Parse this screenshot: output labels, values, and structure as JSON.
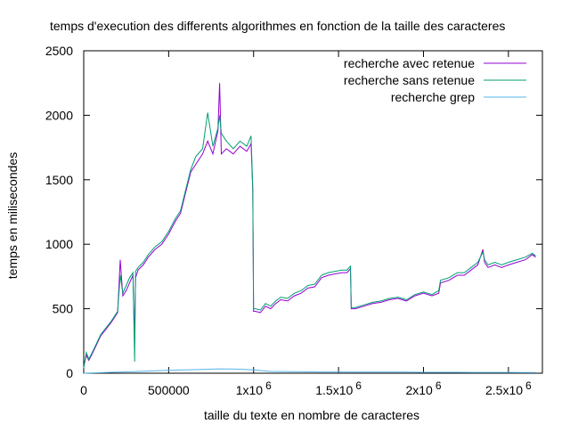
{
  "chart_data": {
    "type": "line",
    "title": "temps d'execution des differents algorithmes en fonction de la taille des caracteres",
    "xlabel": "taille du texte en nombre de caracteres",
    "ylabel": "temps en milisecondes",
    "xlim": [
      0,
      2700000
    ],
    "ylim": [
      0,
      2500
    ],
    "x_ticks": [
      {
        "value": 0,
        "label": "0",
        "exp": ""
      },
      {
        "value": 500000,
        "label": "500000",
        "exp": ""
      },
      {
        "value": 1000000,
        "label": "1x10",
        "exp": "6"
      },
      {
        "value": 1500000,
        "label": "1.5x10",
        "exp": "6"
      },
      {
        "value": 2000000,
        "label": "2x10",
        "exp": "6"
      },
      {
        "value": 2500000,
        "label": "2.5x10",
        "exp": "6"
      }
    ],
    "y_ticks": [
      {
        "value": 0,
        "label": "0"
      },
      {
        "value": 500,
        "label": "500"
      },
      {
        "value": 1000,
        "label": "1000"
      },
      {
        "value": 1500,
        "label": "1500"
      },
      {
        "value": 2000,
        "label": "2000"
      },
      {
        "value": 2500,
        "label": "2500"
      }
    ],
    "legend_position": "top-right",
    "series": [
      {
        "name": "recherche avec retenue",
        "color": "#9400d3",
        "x": [
          0,
          15000,
          30000,
          50000,
          75000,
          100000,
          130000,
          160000,
          200000,
          215000,
          230000,
          250000,
          270000,
          290000,
          300000,
          305000,
          320000,
          350000,
          380000,
          420000,
          460000,
          500000,
          540000,
          570000,
          600000,
          630000,
          660000,
          700000,
          730000,
          760000,
          790000,
          800000,
          810000,
          840000,
          880000,
          920000,
          960000,
          985000,
          995000,
          1000000,
          1010000,
          1040000,
          1070000,
          1100000,
          1130000,
          1160000,
          1200000,
          1240000,
          1280000,
          1320000,
          1360000,
          1400000,
          1440000,
          1480000,
          1520000,
          1550000,
          1570000,
          1575000,
          1600000,
          1650000,
          1700000,
          1750000,
          1800000,
          1850000,
          1900000,
          1950000,
          2000000,
          2050000,
          2090000,
          2100000,
          2150000,
          2200000,
          2240000,
          2280000,
          2320000,
          2350000,
          2360000,
          2380000,
          2420000,
          2460000,
          2500000,
          2550000,
          2600000,
          2640000,
          2660000
        ],
        "y": [
          50,
          140,
          100,
          150,
          220,
          290,
          340,
          390,
          470,
          880,
          600,
          640,
          700,
          760,
          240,
          740,
          800,
          840,
          900,
          960,
          1000,
          1080,
          1180,
          1240,
          1400,
          1560,
          1620,
          1700,
          1800,
          1700,
          1880,
          2250,
          1700,
          1740,
          1700,
          1760,
          1720,
          1780,
          1420,
          480,
          480,
          470,
          520,
          500,
          540,
          570,
          560,
          600,
          620,
          660,
          670,
          740,
          760,
          770,
          780,
          780,
          810,
          500,
          500,
          520,
          540,
          550,
          570,
          580,
          560,
          600,
          620,
          600,
          620,
          700,
          720,
          760,
          760,
          800,
          840,
          960,
          860,
          820,
          840,
          820,
          840,
          860,
          880,
          920,
          900
        ]
      },
      {
        "name": "recherche sans retenue",
        "color": "#009e73",
        "x": [
          0,
          15000,
          30000,
          50000,
          75000,
          100000,
          130000,
          160000,
          200000,
          215000,
          230000,
          250000,
          270000,
          290000,
          300000,
          305000,
          320000,
          350000,
          380000,
          420000,
          460000,
          500000,
          540000,
          570000,
          600000,
          630000,
          660000,
          700000,
          730000,
          760000,
          790000,
          800000,
          810000,
          840000,
          880000,
          920000,
          960000,
          985000,
          995000,
          1000000,
          1010000,
          1040000,
          1070000,
          1100000,
          1130000,
          1160000,
          1200000,
          1240000,
          1280000,
          1320000,
          1360000,
          1400000,
          1440000,
          1480000,
          1520000,
          1550000,
          1570000,
          1575000,
          1600000,
          1650000,
          1700000,
          1750000,
          1800000,
          1850000,
          1900000,
          1950000,
          2000000,
          2050000,
          2090000,
          2100000,
          2150000,
          2200000,
          2240000,
          2280000,
          2320000,
          2350000,
          2360000,
          2380000,
          2420000,
          2460000,
          2500000,
          2550000,
          2600000,
          2640000,
          2660000
        ],
        "y": [
          40,
          160,
          110,
          160,
          230,
          300,
          350,
          400,
          480,
          760,
          620,
          680,
          740,
          780,
          90,
          790,
          820,
          860,
          920,
          980,
          1020,
          1100,
          1200,
          1260,
          1420,
          1580,
          1680,
          1740,
          2020,
          1760,
          1900,
          2000,
          1860,
          1800,
          1740,
          1800,
          1760,
          1840,
          1440,
          500,
          500,
          490,
          540,
          520,
          560,
          590,
          580,
          620,
          640,
          680,
          690,
          760,
          780,
          790,
          800,
          800,
          830,
          510,
          510,
          530,
          550,
          560,
          580,
          590,
          570,
          610,
          630,
          610,
          640,
          720,
          740,
          780,
          780,
          820,
          860,
          940,
          880,
          840,
          860,
          840,
          860,
          880,
          900,
          930,
          910
        ]
      },
      {
        "name": "recherche grep",
        "color": "#56b4e9",
        "x": [
          0,
          100000,
          200000,
          300000,
          400000,
          500000,
          600000,
          700000,
          800000,
          900000,
          1000000,
          1100000,
          1200000,
          1300000,
          1400000,
          1500000,
          1600000,
          1700000,
          1800000,
          1900000,
          2000000,
          2100000,
          2200000,
          2300000,
          2400000,
          2500000,
          2600000,
          2660000
        ],
        "y": [
          0,
          4,
          8,
          12,
          18,
          22,
          26,
          30,
          34,
          32,
          26,
          14,
          12,
          11,
          10,
          10,
          9,
          9,
          8,
          8,
          7,
          7,
          7,
          6,
          6,
          6,
          5,
          5
        ]
      }
    ]
  }
}
